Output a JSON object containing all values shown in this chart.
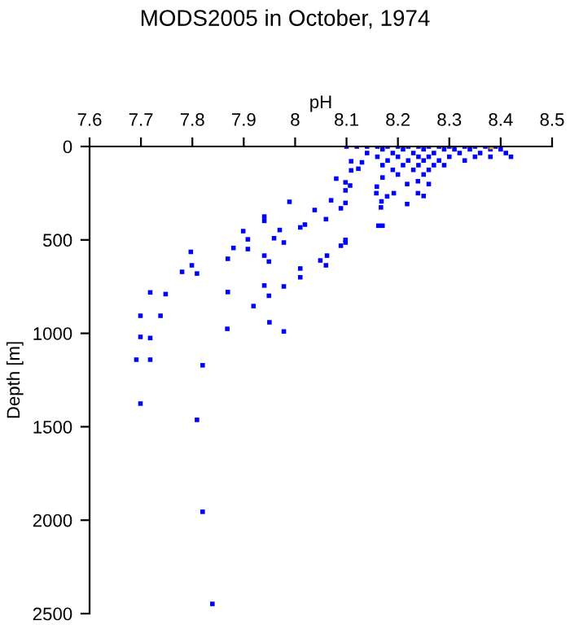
{
  "chart_data": {
    "type": "scatter",
    "title": "MODS2005 in October, 1974",
    "xlabel": "pH",
    "ylabel": "Depth [m]",
    "xlim": [
      7.6,
      8.5
    ],
    "xticks": [
      7.6,
      7.7,
      7.8,
      7.9,
      8,
      8.1,
      8.2,
      8.3,
      8.4,
      8.5
    ],
    "ylim": [
      2500,
      0
    ],
    "yticks": [
      0,
      500,
      1000,
      1500,
      2000,
      2500
    ],
    "grid": false,
    "legend": false,
    "marker": "square",
    "series": [
      {
        "color": "#0000ff",
        "x": [
          8.1,
          8.12,
          8.14,
          8.16,
          8.18,
          8.2,
          8.22,
          8.24,
          8.26,
          8.28,
          8.3,
          8.33,
          8.35,
          8.37,
          8.39,
          8.17,
          8.21,
          8.25,
          8.29,
          8.31,
          8.34,
          8.38,
          8.4,
          8.14,
          8.19,
          8.23,
          8.27,
          8.32,
          8.36,
          8.41,
          8.16,
          8.2,
          8.24,
          8.26,
          8.3,
          8.35,
          8.38,
          8.42,
          8.18,
          8.22,
          8.25,
          8.28,
          8.33,
          8.17,
          8.21,
          8.24,
          8.27,
          8.29,
          8.19,
          8.23,
          8.26,
          8.2,
          8.25,
          8.08,
          8.098,
          8.109,
          8.109,
          8.123,
          8.13,
          7.989,
          8.07,
          8.038,
          8.06,
          8.089,
          8.098,
          8.098,
          8.107,
          7.94,
          7.94,
          7.899,
          7.908,
          7.97,
          7.959,
          7.978,
          8.01,
          8.019,
          7.88,
          7.908,
          7.94,
          7.949,
          7.797,
          7.869,
          7.799,
          7.809,
          7.78,
          8.01,
          8.01,
          8.049,
          8.06,
          8.062,
          8.089,
          8.098,
          8.098,
          8.162,
          8.17,
          7.718,
          7.748,
          7.869,
          7.94,
          7.978,
          7.949,
          7.919,
          8.167,
          8.218,
          8.168,
          8.158,
          8.179,
          8.192,
          8.239,
          8.25,
          8.159,
          8.17,
          8.218,
          8.26,
          8.239,
          7.699,
          7.738,
          7.699,
          7.718,
          7.691,
          7.718,
          7.82,
          7.699,
          7.809,
          7.868,
          7.95,
          7.978,
          7.82,
          7.839
        ],
        "values": [
          0,
          0,
          0,
          0,
          0,
          0,
          0,
          0,
          0,
          0,
          0,
          0,
          0,
          0,
          0,
          15,
          15,
          15,
          15,
          15,
          15,
          15,
          15,
          35,
          35,
          35,
          35,
          35,
          35,
          35,
          55,
          55,
          55,
          55,
          55,
          55,
          55,
          55,
          75,
          75,
          75,
          75,
          75,
          100,
          100,
          100,
          100,
          100,
          125,
          125,
          125,
          150,
          150,
          172,
          192,
          79,
          128,
          119,
          85,
          296,
          288,
          340,
          389,
          331,
          302,
          235,
          209,
          375,
          398,
          453,
          497,
          447,
          491,
          514,
          433,
          418,
          543,
          549,
          584,
          616,
          564,
          601,
          636,
          680,
          671,
          653,
          700,
          610,
          636,
          584,
          531,
          500,
          514,
          424,
          424,
          781,
          790,
          779,
          744,
          749,
          799,
          854,
          326,
          308,
          294,
          250,
          267,
          250,
          250,
          265,
          215,
          166,
          201,
          201,
          186,
          906,
          906,
          1019,
          1025,
          1141,
          1141,
          1171,
          1376,
          1463,
          976,
          941,
          990,
          1955,
          2448
        ]
      },
      {
        "color": "#ffa500",
        "x": [
          8.382
        ],
        "values": [
          3
        ]
      }
    ]
  }
}
